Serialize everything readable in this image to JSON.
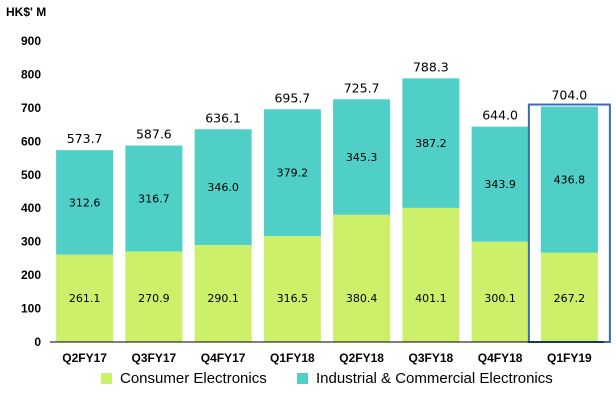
{
  "chart_data": {
    "type": "bar",
    "stacked": true,
    "unit_label": "HK$' M",
    "categories": [
      "Q2FY17",
      "Q3FY17",
      "Q4FY17",
      "Q1FY18",
      "Q2FY18",
      "Q3FY18",
      "Q4FY18",
      "Q1FY19"
    ],
    "series": [
      {
        "name": "Consumer Electronics",
        "color": "#ccf06a",
        "values": [
          261.1,
          270.9,
          290.1,
          316.5,
          380.4,
          401.1,
          300.1,
          267.2
        ],
        "labels": [
          "261.1",
          "270.9",
          "290.1",
          "316.5",
          "380.4",
          "401.1",
          "300.1",
          "267.2"
        ]
      },
      {
        "name": "Industrial & Commercial Electronics",
        "color": "#4fcfc6",
        "values": [
          312.6,
          316.7,
          346.0,
          379.2,
          345.3,
          387.2,
          343.9,
          436.8
        ],
        "labels": [
          "312.6",
          "316.7",
          "346.0",
          "379.2",
          "345.3",
          "387.2",
          "343.9",
          "436.8"
        ]
      }
    ],
    "totals": [
      573.7,
      587.6,
      636.1,
      695.7,
      725.7,
      788.3,
      644.0,
      704.0
    ],
    "total_labels": [
      "573.7",
      "587.6",
      "636.1",
      "695.7",
      "725.7",
      "788.3",
      "644.0",
      "704.0"
    ],
    "ylim": [
      0,
      900
    ],
    "yticks": [
      0,
      100,
      200,
      300,
      400,
      500,
      600,
      700,
      800,
      900
    ],
    "ytick_labels": [
      "0",
      "100",
      "200",
      "300",
      "400",
      "500",
      "600",
      "700",
      "800",
      "900"
    ],
    "highlighted_category": "Q1FY19",
    "highlight_color": "#3a6db5",
    "legend_position": "bottom",
    "grid": false
  }
}
